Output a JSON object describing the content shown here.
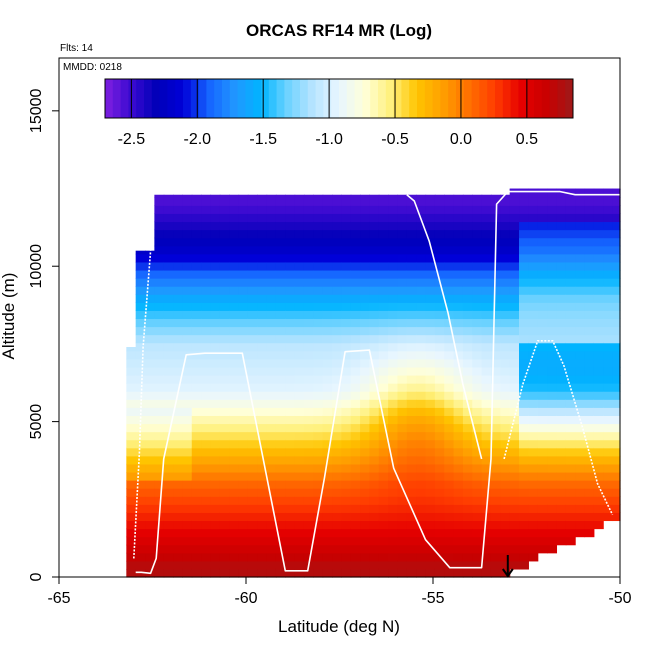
{
  "chart_data": {
    "type": "heatmap",
    "title": "ORCAS RF14 MR (Log)",
    "annotations": {
      "flights": "Flts: 14",
      "date": "MMDD: 0218"
    },
    "xlabel": "Latitude (deg N)",
    "ylabel": "Altitude (m)",
    "xlim": [
      -65,
      -50
    ],
    "ylim": [
      0,
      16700
    ],
    "x_ticks": [
      -65,
      -60,
      -55,
      -50
    ],
    "x_tick_labels": [
      "-65",
      "-60",
      "-55",
      "-50"
    ],
    "y_ticks": [
      0,
      5000,
      10000,
      15000
    ],
    "y_tick_labels": [
      "0",
      "5000",
      "10000",
      "15000"
    ],
    "colorbar": {
      "range": [
        -2.7,
        0.85
      ],
      "ticks": [
        -2.5,
        -2.0,
        -1.5,
        -1.0,
        -0.5,
        0.0,
        0.5
      ],
      "tick_labels": [
        "-2.5",
        "-2.0",
        "-1.5",
        "-1.0",
        "-0.5",
        "0.0",
        "0.5"
      ],
      "colors": [
        "#7f1fe0",
        "#3a0ad0",
        "#0000b8",
        "#0000d8",
        "#1565ff",
        "#2196ff",
        "#00b4ff",
        "#6cd2ff",
        "#b7e4ff",
        "#e8f6ff",
        "#ffffd8",
        "#fff07a",
        "#ffc400",
        "#ff9e00",
        "#ff7000",
        "#ff3c00",
        "#e60000",
        "#c80000",
        "#9e1a1a"
      ]
    },
    "profile_levels_m": [
      12000,
      10500,
      9000,
      7500,
      6000,
      4500,
      3000,
      1500,
      300
    ],
    "profile_values": [
      -2.55,
      -2.2,
      -1.6,
      -1.1,
      -0.95,
      -0.45,
      0.1,
      0.45,
      0.75
    ],
    "flight_track": {
      "lat": [
        -62.95,
        -62.8,
        -62.55,
        -62.4,
        -62.2,
        -61.6,
        -61.1,
        -60.1,
        -58.95,
        -58.35,
        -57.9,
        -57.35,
        -56.7,
        -56.05,
        -55.2,
        -54.55,
        -53.7,
        -53.45,
        -53.3,
        -53.0,
        -52.65,
        -52.3,
        -52.0,
        -51.6,
        -51.2,
        -50.4,
        -50.0
      ],
      "alt": [
        150,
        150,
        120,
        600,
        3800,
        7150,
        7200,
        7200,
        200,
        200,
        3200,
        7250,
        7300,
        3500,
        1200,
        300,
        300,
        3800,
        12000,
        12400,
        12400,
        12400,
        12400,
        12400,
        12300,
        12300,
        12300
      ]
    },
    "flight_track_descent": {
      "lat": [
        -55.7,
        -55.5,
        -55.1,
        -54.6,
        -54.2,
        -53.7
      ],
      "alt": [
        12300,
        12100,
        10800,
        8500,
        6200,
        3800
      ]
    },
    "flight_track_return": {
      "lat": [
        -53.1,
        -52.6,
        -52.2,
        -51.8,
        -51.5,
        -51.0,
        -50.6,
        -50.2
      ],
      "alt": [
        3800,
        6200,
        7600,
        7600,
        6800,
        4800,
        3000,
        2000
      ]
    },
    "takeoff_marker_lat": -53.0
  }
}
